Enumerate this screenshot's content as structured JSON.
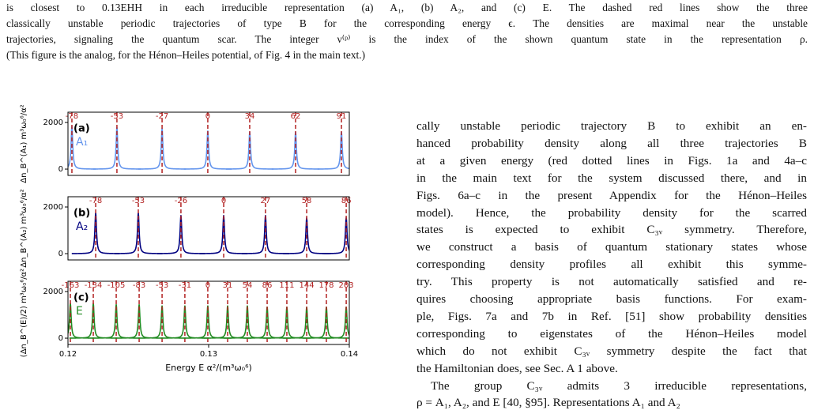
{
  "caption_lines": [
    "is closest to 0.13EHH in each irreducible representation (a) A₁, (b) A₂, and (c) E. The dashed red lines show the three",
    "classically unstable periodic trajectories of type B for the corresponding energy ϵ. The densities are maximal near the unstable",
    "trajectories, signaling the quantum scar. The integer ν⁽ᵖ⁾ is the index of the shown quantum state in the representation ρ.",
    "(This figure is the analog, for the Hénon–Heiles potential, of Fig. 4 in the main text.)"
  ],
  "right_column": [
    "cally unstable periodic trajectory B to exhibit an en-",
    "hanced probability density along all three trajectories B",
    "at a given energy (red dotted lines in Figs. 1a and 4a–c",
    "in the main text for the system discussed there, and in",
    "Figs. 6a–c in the present Appendix for the Hénon–Heiles",
    "model). Hence, the probability density for the scarred",
    "states is expected to exhibit C₃ᵥ symmetry. Therefore,",
    "we construct a basis of quantum stationary states whose",
    "corresponding density profiles all exhibit this symme-",
    "try. This property is not automatically satisfied and re-",
    "quires choosing appropriate basis functions. For exam-",
    "ple, Figs. 7a and 7b in Ref. [51] show probability densities",
    "corresponding to eigenstates of the Hénon–Heiles model",
    "which do not exhibit C₃ᵥ symmetry despite the fact that",
    "the Hamiltonian does, see Sec. A 1 above.",
    "The group C₃ᵥ admits 3 irreducible representations,",
    "ρ = A₁, A₂, and E [40, §95]. Representations A₁ and A₂"
  ],
  "chart_data": [
    {
      "type": "line",
      "panel_label": "(a)",
      "ylabel": "Δn_B^(A₁) m³ω₀⁶/α²",
      "xlim": [
        0.12,
        0.14
      ],
      "ylim": [
        -270,
        2440
      ],
      "yticks": [
        0,
        2000
      ],
      "series": [
        {
          "name": "A₁",
          "color": "#6495ed",
          "x": [
            0.12028,
            0.12348,
            0.12669,
            0.12994,
            0.13292,
            0.13618,
            0.13944
          ],
          "values": [
            1850,
            1800,
            1750,
            1650,
            1600,
            1600,
            1600
          ]
        }
      ],
      "peak_index_labels": [
        -78,
        -53,
        -27,
        0,
        34,
        62,
        91
      ]
    },
    {
      "type": "line",
      "panel_label": "(b)",
      "ylabel": "Δn_B^(A₂) m³ω₀⁶/α²",
      "xlim": [
        0.12,
        0.14
      ],
      "ylim": [
        -270,
        2440
      ],
      "yticks": [
        0,
        2000
      ],
      "series": [
        {
          "name": "A₂",
          "color": "#000080",
          "x": [
            0.12197,
            0.125,
            0.12803,
            0.13107,
            0.13404,
            0.13697,
            0.13978
          ],
          "values": [
            1750,
            1750,
            1650,
            1650,
            1650,
            1550,
            1550
          ]
        }
      ],
      "peak_index_labels": [
        -78,
        -53,
        -26,
        0,
        27,
        58,
        86
      ]
    },
    {
      "type": "line",
      "panel_label": "(c)",
      "ylabel": "(Δn_B^(E)/2) m³ω₀⁶/α²",
      "xlabel": "Energy E α²/(m³ω₀⁶)",
      "xlim": [
        0.12,
        0.14
      ],
      "ylim": [
        -270,
        2440
      ],
      "yticks": [
        0,
        2000
      ],
      "xticks": [
        0.12,
        0.13,
        0.14
      ],
      "series": [
        {
          "name": "E",
          "color": "#228b22",
          "x": [
            0.12017,
            0.1218,
            0.12343,
            0.12506,
            0.12669,
            0.12831,
            0.12994,
            0.13135,
            0.13275,
            0.13416,
            0.13556,
            0.13697,
            0.13837,
            0.13978
          ],
          "values": [
            1500,
            1500,
            1450,
            1450,
            1400,
            1400,
            1400,
            1400,
            1400,
            1350,
            1350,
            1350,
            1350,
            1350
          ]
        }
      ],
      "peak_index_labels": [
        -163,
        -134,
        -105,
        -83,
        -53,
        -31,
        0,
        31,
        54,
        86,
        111,
        144,
        178,
        203
      ]
    }
  ]
}
